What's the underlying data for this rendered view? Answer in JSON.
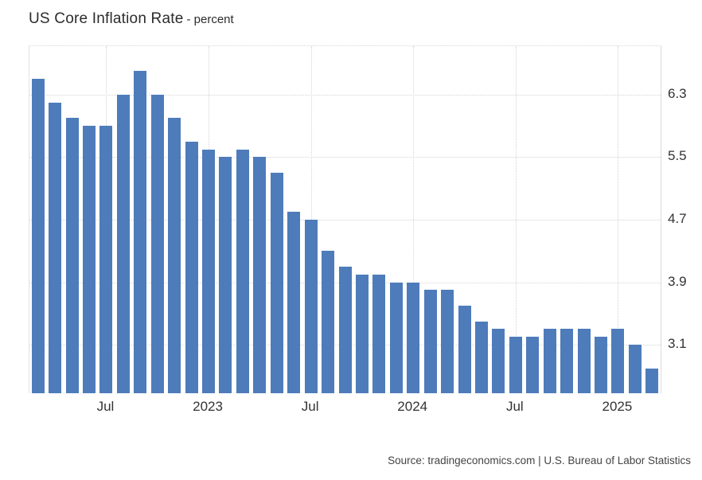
{
  "header": {
    "title": "US Core Inflation Rate",
    "subtitle": "- percent"
  },
  "footer": {
    "source": "Source: tradingeconomics.com | U.S. Bureau of Labor Statistics"
  },
  "colors": {
    "bar": "#4e7cba",
    "grid": "#d4d4d4",
    "axis_text": "#333333",
    "title_text": "#2c2c2c",
    "source_text": "#444444",
    "background": "#ffffff"
  },
  "chart_data": {
    "type": "bar",
    "title": "US Core Inflation Rate",
    "ylabel": "percent",
    "xlabel": "",
    "grid": true,
    "legend_position": "none",
    "ylim": [
      2.48,
      6.92
    ],
    "yticks": [
      3.1,
      3.9,
      4.7,
      5.5,
      6.3
    ],
    "categories": [
      "Mar 2022",
      "Apr 2022",
      "May 2022",
      "Jun 2022",
      "Jul 2022",
      "Aug 2022",
      "Sep 2022",
      "Oct 2022",
      "Nov 2022",
      "Dec 2022",
      "Jan 2023",
      "Feb 2023",
      "Mar 2023",
      "Apr 2023",
      "May 2023",
      "Jun 2023",
      "Jul 2023",
      "Aug 2023",
      "Sep 2023",
      "Oct 2023",
      "Nov 2023",
      "Dec 2023",
      "Jan 2024",
      "Feb 2024",
      "Mar 2024",
      "Apr 2024",
      "May 2024",
      "Jun 2024",
      "Jul 2024",
      "Aug 2024",
      "Sep 2024",
      "Oct 2024",
      "Nov 2024",
      "Dec 2024",
      "Jan 2025",
      "Feb 2025",
      "Mar 2025"
    ],
    "values": [
      6.5,
      6.2,
      6.0,
      5.9,
      5.9,
      6.3,
      6.6,
      6.3,
      6.0,
      5.7,
      5.6,
      5.5,
      5.6,
      5.5,
      5.3,
      4.8,
      4.7,
      4.3,
      4.1,
      4.0,
      4.0,
      3.9,
      3.9,
      3.8,
      3.8,
      3.6,
      3.4,
      3.3,
      3.2,
      3.2,
      3.3,
      3.3,
      3.3,
      3.2,
      3.3,
      3.1,
      2.8
    ],
    "xticks": [
      {
        "index": 4,
        "label": "Jul"
      },
      {
        "index": 10,
        "label": "2023"
      },
      {
        "index": 16,
        "label": "Jul"
      },
      {
        "index": 22,
        "label": "2024"
      },
      {
        "index": 28,
        "label": "Jul"
      },
      {
        "index": 34,
        "label": "2025"
      }
    ]
  }
}
